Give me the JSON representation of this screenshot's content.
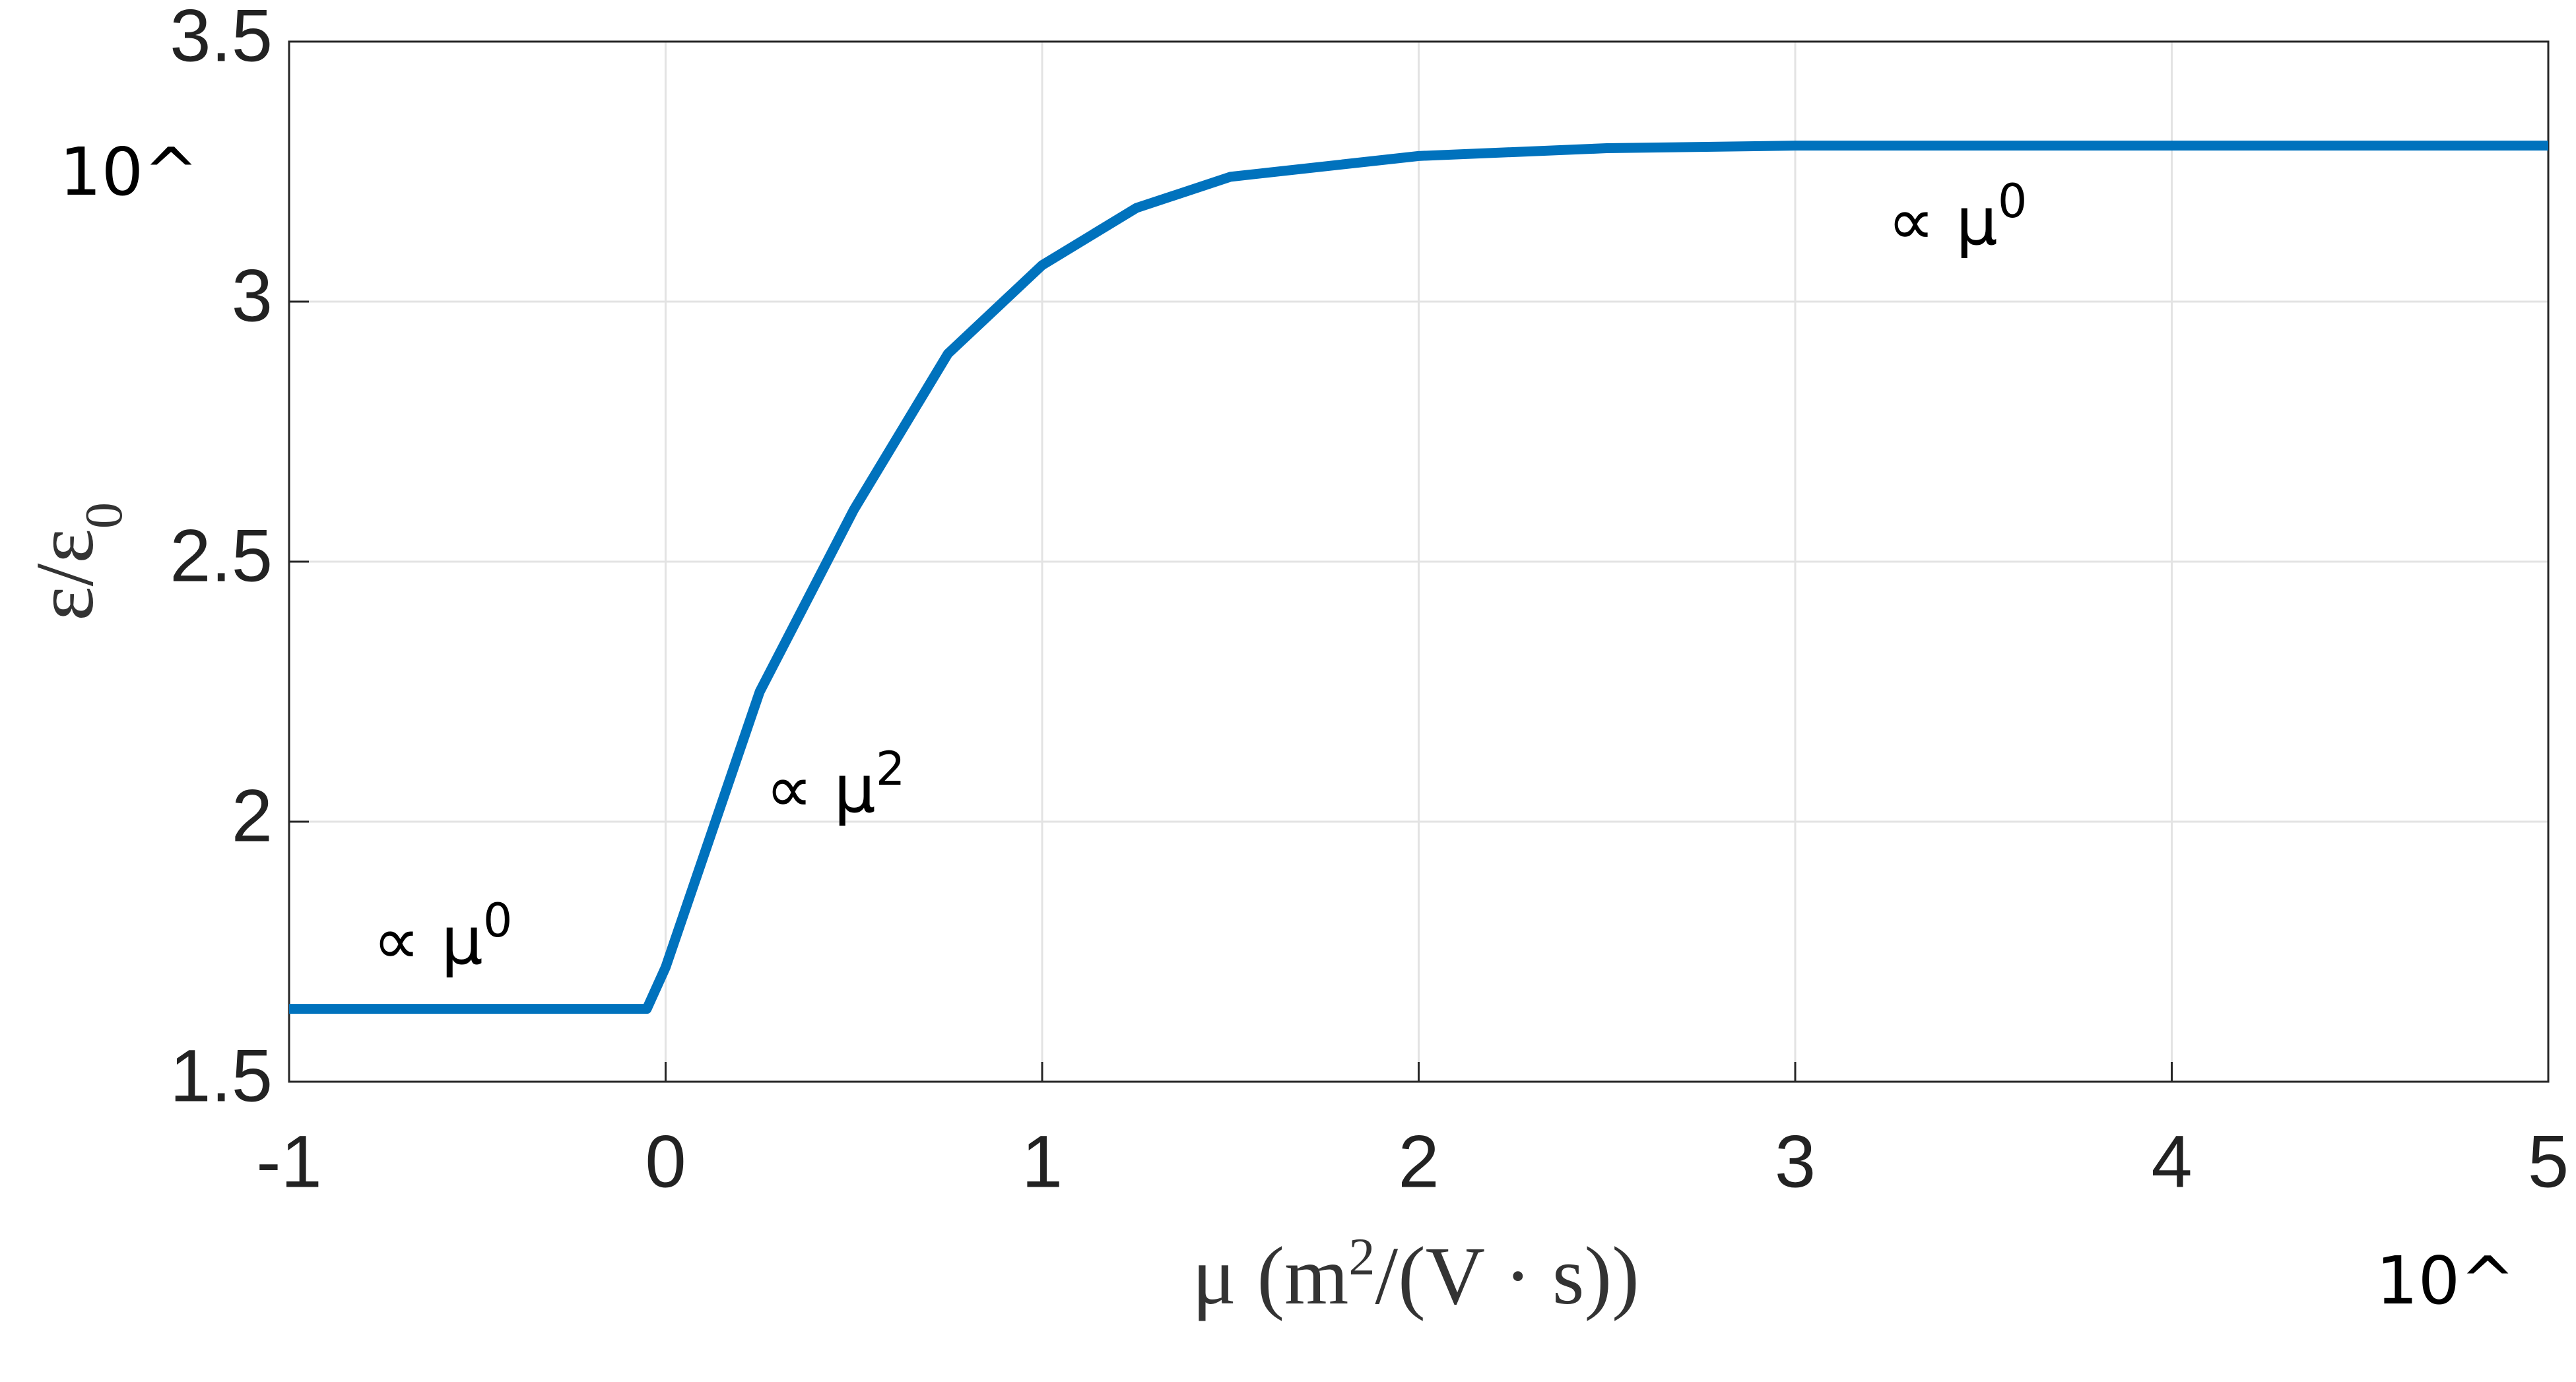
{
  "chart_data": {
    "type": "line",
    "x": [
      -1,
      -0.05,
      0,
      0.25,
      0.5,
      0.75,
      1,
      1.25,
      1.5,
      2,
      2.5,
      3,
      4,
      5
    ],
    "values": [
      1.64,
      1.64,
      1.72,
      2.25,
      2.6,
      2.9,
      3.07,
      3.18,
      3.24,
      3.28,
      3.295,
      3.3,
      3.3,
      3.3
    ],
    "color": "#0072bd",
    "xlim": [
      -1,
      5
    ],
    "xticks": [
      -1,
      0,
      1,
      2,
      3,
      4,
      5
    ],
    "ylim": [
      1.5,
      3.5
    ],
    "yticks": [
      1.5,
      2,
      2.5,
      3,
      3.5
    ],
    "grid": true,
    "x_label": [
      "μ (m",
      "2",
      "/(V · s))"
    ],
    "y_label": [
      "ε/ε",
      "0"
    ],
    "annotations": [
      {
        "text": "10^"
      },
      {
        "text": "10^"
      },
      {
        "text": "∝ μ",
        "sup": "0"
      },
      {
        "text": "∝ μ",
        "sup": "2"
      },
      {
        "text": "∝ μ",
        "sup": "0"
      }
    ]
  }
}
